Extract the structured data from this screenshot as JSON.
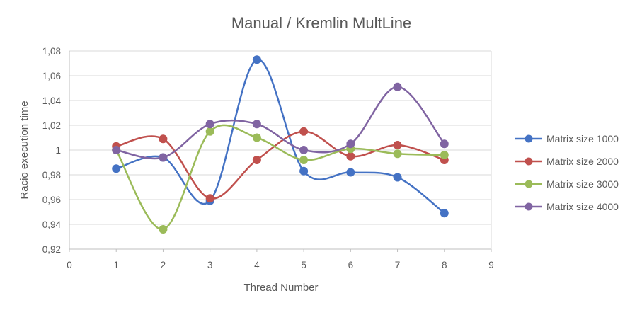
{
  "chart_data": {
    "type": "scatter",
    "title": "Manual / Kremlin MultLine",
    "xlabel": "Thread Number",
    "ylabel": "Racio execution time",
    "xlim": [
      0,
      9
    ],
    "ylim": [
      0.92,
      1.08
    ],
    "x_ticks": [
      "0",
      "1",
      "2",
      "3",
      "4",
      "5",
      "6",
      "7",
      "8",
      "9"
    ],
    "y_ticks": [
      "0,92",
      "0,94",
      "0,96",
      "0,98",
      "1",
      "1,02",
      "1,04",
      "1,06",
      "1,08"
    ],
    "grid": "horizontal",
    "legend_position": "right",
    "smooth_lines": true,
    "series": [
      {
        "name": "Matrix size 1000",
        "color": "#4472c4",
        "x": [
          1,
          2,
          3,
          4,
          5,
          6,
          7,
          8
        ],
        "y": [
          0.985,
          0.994,
          0.959,
          1.073,
          0.983,
          0.982,
          0.978,
          0.949
        ]
      },
      {
        "name": "Matrix size 2000",
        "color": "#c0504d",
        "x": [
          1,
          2,
          3,
          4,
          5,
          6,
          7,
          8
        ],
        "y": [
          1.003,
          1.009,
          0.961,
          0.992,
          1.015,
          0.995,
          1.004,
          0.992
        ]
      },
      {
        "name": "Matrix size 3000",
        "color": "#9bbb59",
        "x": [
          1,
          2,
          3,
          4,
          5,
          6,
          7,
          8
        ],
        "y": [
          1.0,
          0.936,
          1.015,
          1.01,
          0.992,
          1.001,
          0.997,
          0.996
        ]
      },
      {
        "name": "Matrix size 4000",
        "color": "#8064a2",
        "x": [
          1,
          2,
          3,
          4,
          5,
          6,
          7,
          8
        ],
        "y": [
          1.0,
          0.994,
          1.021,
          1.021,
          1.0,
          1.005,
          1.051,
          1.005
        ]
      }
    ]
  }
}
